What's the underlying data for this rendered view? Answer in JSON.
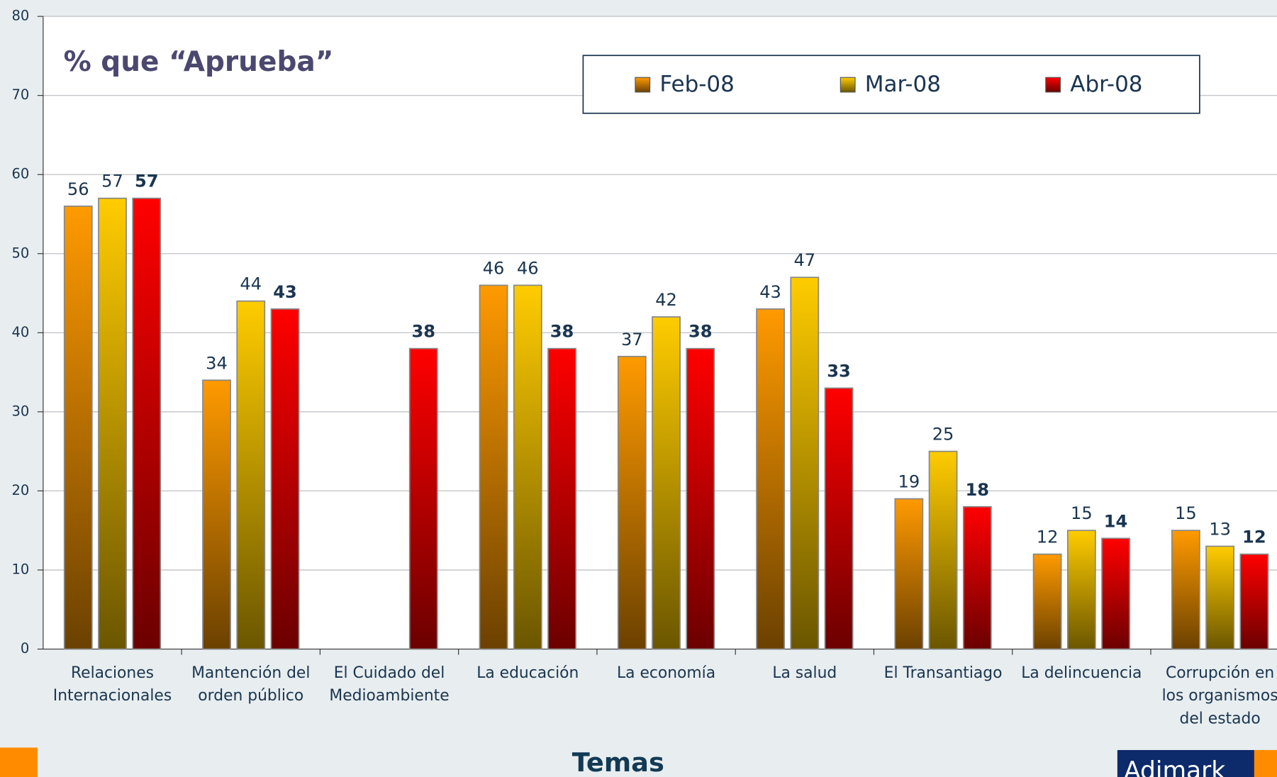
{
  "chart_data": {
    "type": "bar",
    "title": "% que “Aprueba”",
    "x_label": "Temas",
    "logo": "Adimark",
    "categories": [
      "Relaciones\nInternacionales",
      "Mantención del\norden público",
      "El Cuidado del\nMedioambiente",
      "La educación",
      "La economía",
      "La salud",
      "El Transantiago",
      "La delincuencia",
      "Corrupción en\nlos organismos\ndel estado"
    ],
    "series": [
      {
        "name": "Feb-08",
        "color": "#ff9a00",
        "values": [
          56,
          34,
          null,
          46,
          37,
          43,
          19,
          12,
          15
        ]
      },
      {
        "name": "Mar-08",
        "color": "#ffcc00",
        "values": [
          57,
          44,
          null,
          46,
          42,
          47,
          25,
          15,
          13
        ]
      },
      {
        "name": "Abr-08",
        "color": "#ff0000",
        "values": [
          57,
          43,
          38,
          38,
          38,
          33,
          18,
          14,
          12
        ]
      }
    ],
    "ylim": [
      0,
      80
    ],
    "yticks": [
      0,
      10,
      20,
      30,
      40,
      50,
      60,
      70,
      80
    ],
    "grid": true
  }
}
